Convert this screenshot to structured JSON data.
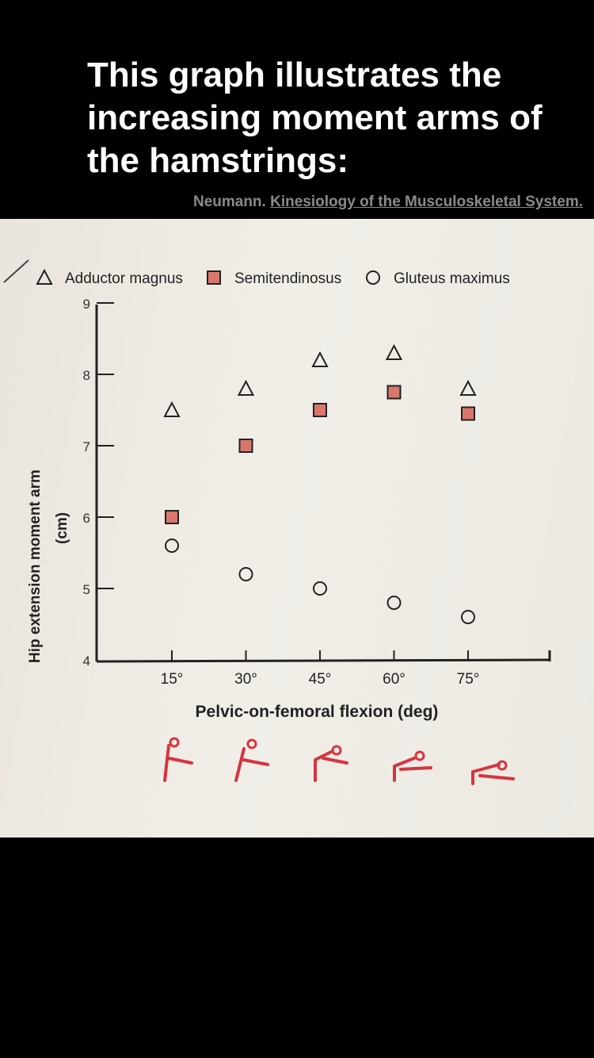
{
  "header": {
    "title": "This graph illustrates the increasing moment arms of the hamstrings:",
    "citation_author": "Neumann.",
    "citation_book": "Kinesiology of the Musculoskeletal System."
  },
  "chart_data": {
    "type": "scatter",
    "title": "",
    "xlabel": "Pelvic-on-femoral flexion (deg)",
    "ylabel": "Hip extension moment arm",
    "ylabel_unit": "(cm)",
    "x": [
      15,
      30,
      45,
      60,
      75
    ],
    "x_tick_labels": [
      "15°",
      "30°",
      "45°",
      "60°",
      "75°"
    ],
    "y_ticks": [
      "4",
      "5",
      "6",
      "7",
      "8",
      "9"
    ],
    "ylim": [
      4,
      9
    ],
    "grid": false,
    "legend_position": "top",
    "series": [
      {
        "name": "Adductor magnus",
        "marker": "triangle",
        "color": "#ffffff",
        "values": [
          7.5,
          7.8,
          8.2,
          8.3,
          7.8
        ]
      },
      {
        "name": "Semitendinosus",
        "marker": "square",
        "color": "#d9776e",
        "values": [
          6.0,
          7.0,
          7.5,
          7.75,
          7.45
        ]
      },
      {
        "name": "Gluteus maximus",
        "marker": "circle",
        "color": "#ffffff",
        "values": [
          5.6,
          5.2,
          5.0,
          4.8,
          4.6
        ]
      }
    ],
    "figure_color": "#d7343e"
  }
}
